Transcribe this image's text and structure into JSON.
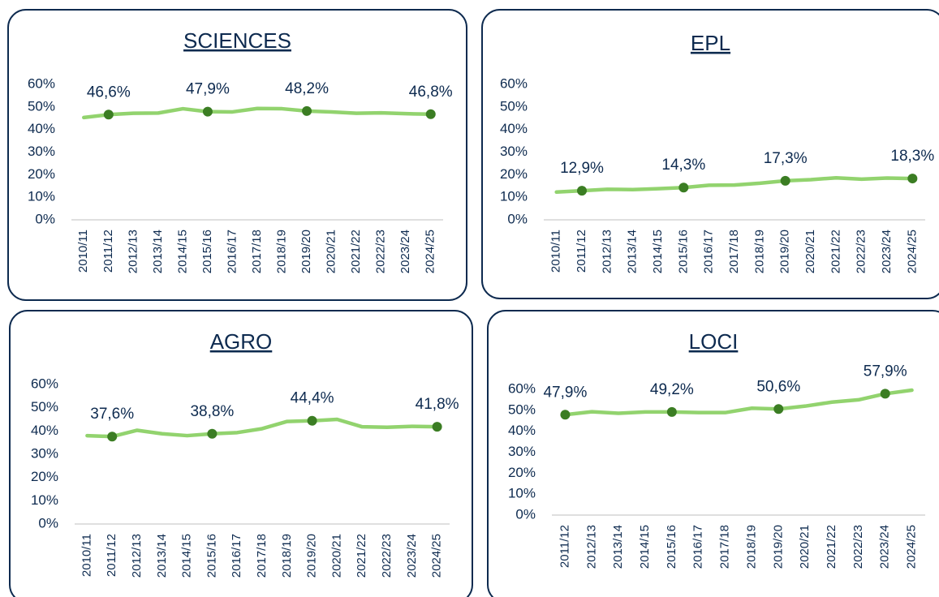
{
  "chart_data": [
    {
      "type": "line",
      "title": "SCIENCES",
      "categories": [
        "2010/11",
        "2011/12",
        "2012/13",
        "2013/14",
        "2014/15",
        "2015/16",
        "2016/17",
        "2017/18",
        "2018/19",
        "2019/20",
        "2020/21",
        "2021/22",
        "2022/23",
        "2023/24",
        "2024/25"
      ],
      "series": [
        {
          "name": "SCIENCES",
          "color": "#92d36e",
          "marker_color": "#3b7d23",
          "values": [
            45.3,
            46.6,
            47.2,
            47.3,
            49.2,
            47.9,
            47.8,
            49.3,
            49.2,
            48.2,
            47.8,
            47.2,
            47.4,
            47.0,
            46.8
          ],
          "value_labels": [
            null,
            "46,6%",
            null,
            null,
            null,
            "47,9%",
            null,
            null,
            null,
            "48,2%",
            null,
            null,
            null,
            null,
            "46,8%"
          ]
        }
      ],
      "ylim": [
        0,
        60
      ],
      "yticks": [
        {
          "value": 0,
          "label": "0%"
        },
        {
          "value": 10,
          "label": "10%"
        },
        {
          "value": 20,
          "label": "20%"
        },
        {
          "value": 30,
          "label": "30%"
        },
        {
          "value": 40,
          "label": "40%"
        },
        {
          "value": 50,
          "label": "50%"
        },
        {
          "value": 60,
          "label": "60%"
        }
      ],
      "grid": false
    },
    {
      "type": "line",
      "title": "EPL",
      "categories": [
        "2010/11",
        "2011/12",
        "2012/13",
        "2013/14",
        "2014/15",
        "2015/16",
        "2016/17",
        "2017/18",
        "2018/19",
        "2019/20",
        "2020/21",
        "2021/22",
        "2022/23",
        "2023/24",
        "2024/25"
      ],
      "series": [
        {
          "name": "EPL",
          "color": "#92d36e",
          "marker_color": "#3b7d23",
          "values": [
            12.3,
            12.9,
            13.5,
            13.4,
            13.8,
            14.3,
            15.3,
            15.4,
            16.2,
            17.3,
            17.8,
            18.6,
            18.0,
            18.5,
            18.3
          ],
          "value_labels": [
            null,
            "12,9%",
            null,
            null,
            null,
            "14,3%",
            null,
            null,
            null,
            "17,3%",
            null,
            null,
            null,
            null,
            "18,3%"
          ]
        }
      ],
      "ylim": [
        0,
        60
      ],
      "yticks": [
        {
          "value": 0,
          "label": "0%"
        },
        {
          "value": 10,
          "label": "10%"
        },
        {
          "value": 20,
          "label": "20%"
        },
        {
          "value": 30,
          "label": "30%"
        },
        {
          "value": 40,
          "label": "40%"
        },
        {
          "value": 50,
          "label": "50%"
        },
        {
          "value": 60,
          "label": "60%"
        }
      ],
      "grid": false
    },
    {
      "type": "line",
      "title": "AGRO",
      "categories": [
        "2010/11",
        "2011/12",
        "2012/13",
        "2013/14",
        "2014/15",
        "2015/16",
        "2016/17",
        "2017/18",
        "2018/19",
        "2019/20",
        "2020/21",
        "2021/22",
        "2022/23",
        "2023/24",
        "2024/25"
      ],
      "series": [
        {
          "name": "AGRO",
          "color": "#92d36e",
          "marker_color": "#3b7d23",
          "values": [
            38.0,
            37.6,
            40.3,
            38.8,
            38.0,
            38.8,
            39.3,
            41.0,
            44.1,
            44.4,
            45.0,
            41.8,
            41.6,
            42.0,
            41.8
          ],
          "value_labels": [
            null,
            "37,6%",
            null,
            null,
            null,
            "38,8%",
            null,
            null,
            null,
            "44,4%",
            null,
            null,
            null,
            null,
            "41,8%"
          ]
        }
      ],
      "ylim": [
        0,
        60
      ],
      "yticks": [
        {
          "value": 0,
          "label": "0%"
        },
        {
          "value": 10,
          "label": "10%"
        },
        {
          "value": 20,
          "label": "20%"
        },
        {
          "value": 30,
          "label": "30%"
        },
        {
          "value": 40,
          "label": "40%"
        },
        {
          "value": 50,
          "label": "50%"
        },
        {
          "value": 60,
          "label": "60%"
        }
      ],
      "grid": false
    },
    {
      "type": "line",
      "title": "LOCI",
      "categories": [
        "2011/12",
        "2012/13",
        "2013/14",
        "2014/15",
        "2015/16",
        "2016/17",
        "2017/18",
        "2018/19",
        "2019/20",
        "2020/21",
        "2021/22",
        "2022/23",
        "2023/24",
        "2024/25"
      ],
      "series": [
        {
          "name": "LOCI",
          "color": "#92d36e",
          "marker_color": "#3b7d23",
          "values": [
            47.9,
            49.3,
            48.6,
            49.2,
            49.2,
            48.9,
            48.9,
            51.0,
            50.6,
            52.0,
            53.9,
            55.0,
            57.9,
            59.6
          ],
          "value_labels": [
            "47,9%",
            null,
            null,
            null,
            "49,2%",
            null,
            null,
            null,
            "50,6%",
            null,
            null,
            null,
            "57,9%",
            null
          ]
        }
      ],
      "ylim": [
        0,
        60
      ],
      "yticks": [
        {
          "value": 0,
          "label": "0%"
        },
        {
          "value": 10,
          "label": "10%"
        },
        {
          "value": 20,
          "label": "20%"
        },
        {
          "value": 30,
          "label": "30%"
        },
        {
          "value": 40,
          "label": "40%"
        },
        {
          "value": 50,
          "label": "50%"
        },
        {
          "value": 60,
          "label": "60%"
        }
      ],
      "grid": false
    }
  ]
}
